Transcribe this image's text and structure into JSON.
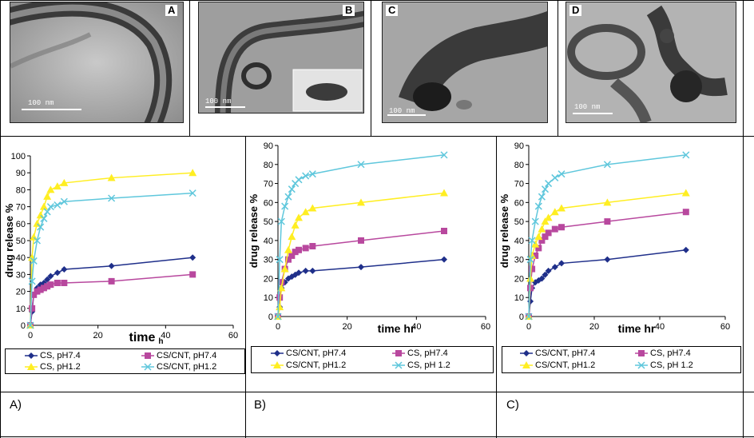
{
  "tem_images": [
    {
      "letter": "A",
      "scale": "100 nm"
    },
    {
      "letter": "B",
      "scale": "100 nm"
    },
    {
      "letter": "C",
      "scale": "100 nm"
    },
    {
      "letter": "D",
      "scale": "100 nm"
    }
  ],
  "panel_labels": [
    "A)",
    "B)",
    "C)"
  ],
  "colors": {
    "navy": "#1f2f8a",
    "magenta": "#b8489e",
    "yellow": "#ffee22",
    "cyan": "#5fc7dc"
  },
  "chart_data": [
    {
      "type": "line",
      "xlabel": "time",
      "xlabel_unit": "h",
      "ylabel": "drug release %",
      "xlim": [
        0,
        60
      ],
      "ylim": [
        0,
        100
      ],
      "xticks": [
        0,
        20,
        40,
        60
      ],
      "yticks": [
        0,
        10,
        20,
        30,
        40,
        50,
        60,
        70,
        80,
        90,
        100
      ],
      "series": [
        {
          "name": "CS, pH7.4",
          "color": "#1f2f8a",
          "marker": "diamond",
          "x": [
            0,
            0.5,
            1,
            2,
            3,
            4,
            5,
            6,
            8,
            10,
            24,
            48
          ],
          "y": [
            0,
            8,
            18,
            22,
            24,
            25,
            27,
            29,
            31,
            33,
            35,
            40
          ]
        },
        {
          "name": "CS/CNT, pH7.4",
          "color": "#b8489e",
          "marker": "square",
          "x": [
            0,
            0.5,
            1,
            2,
            3,
            4,
            5,
            6,
            8,
            10,
            24,
            48
          ],
          "y": [
            0,
            10,
            18,
            20,
            21,
            22,
            23,
            24,
            25,
            25,
            26,
            30
          ]
        },
        {
          "name": "CS, pH1.2",
          "color": "#ffee22",
          "marker": "triangle",
          "x": [
            0,
            0.5,
            1,
            2,
            3,
            4,
            5,
            6,
            8,
            10,
            24,
            48
          ],
          "y": [
            0,
            40,
            52,
            60,
            65,
            70,
            76,
            80,
            82,
            84,
            87,
            90
          ]
        },
        {
          "name": "CS/CNT, pH1.2",
          "color": "#5fc7dc",
          "marker": "x",
          "x": [
            0,
            0.5,
            1,
            2,
            3,
            4,
            5,
            6,
            8,
            10,
            24,
            48
          ],
          "y": [
            0,
            26,
            38,
            50,
            58,
            63,
            67,
            70,
            71,
            73,
            75,
            78
          ]
        }
      ]
    },
    {
      "type": "line",
      "xlabel": "time hr",
      "ylabel": "drug release %",
      "xlim": [
        0,
        60
      ],
      "ylim": [
        0,
        90
      ],
      "xticks": [
        0,
        20,
        40,
        60
      ],
      "yticks": [
        0,
        10,
        20,
        30,
        40,
        50,
        60,
        70,
        80,
        90
      ],
      "series": [
        {
          "name": "CS/CNT, pH7.4",
          "color": "#1f2f8a",
          "marker": "diamond",
          "x": [
            0,
            0.5,
            1,
            2,
            3,
            4,
            5,
            6,
            8,
            10,
            24,
            48
          ],
          "y": [
            0,
            5,
            15,
            18,
            20,
            21,
            22,
            23,
            24,
            24,
            26,
            30
          ]
        },
        {
          "name": "CS, pH7.4",
          "color": "#b8489e",
          "marker": "square",
          "x": [
            0,
            0.5,
            1,
            2,
            3,
            4,
            5,
            6,
            8,
            10,
            24,
            48
          ],
          "y": [
            0,
            10,
            18,
            25,
            30,
            32,
            34,
            35,
            36,
            37,
            40,
            45
          ]
        },
        {
          "name": "CS/CNT, pH1.2",
          "color": "#ffee22",
          "marker": "triangle",
          "x": [
            0,
            0.5,
            1,
            2,
            3,
            4,
            5,
            6,
            8,
            10,
            24,
            48
          ],
          "y": [
            0,
            5,
            15,
            25,
            35,
            42,
            48,
            52,
            55,
            57,
            60,
            65
          ]
        },
        {
          "name": "CS, pH 1.2",
          "color": "#5fc7dc",
          "marker": "x",
          "x": [
            0,
            0.5,
            1,
            2,
            3,
            4,
            5,
            6,
            8,
            10,
            24,
            48
          ],
          "y": [
            0,
            30,
            50,
            58,
            63,
            67,
            70,
            72,
            74,
            75,
            80,
            85
          ]
        }
      ]
    },
    {
      "type": "line",
      "xlabel": "time hr",
      "ylabel": "drug release %",
      "xlim": [
        0,
        60
      ],
      "ylim": [
        0,
        90
      ],
      "xticks": [
        0,
        20,
        40,
        60
      ],
      "yticks": [
        0,
        10,
        20,
        30,
        40,
        50,
        60,
        70,
        80,
        90
      ],
      "series": [
        {
          "name": "CS/CNT, pH7.4",
          "color": "#1f2f8a",
          "marker": "diamond",
          "x": [
            0,
            0.5,
            1,
            2,
            3,
            4,
            5,
            6,
            8,
            10,
            24,
            48
          ],
          "y": [
            0,
            8,
            15,
            18,
            19,
            20,
            22,
            24,
            26,
            28,
            30,
            35
          ]
        },
        {
          "name": "CS, pH7.4",
          "color": "#b8489e",
          "marker": "square",
          "x": [
            0,
            0.5,
            1,
            2,
            3,
            4,
            5,
            6,
            8,
            10,
            24,
            48
          ],
          "y": [
            0,
            15,
            25,
            32,
            36,
            40,
            42,
            44,
            46,
            47,
            50,
            55
          ]
        },
        {
          "name": "CS/CNT, pH1.2",
          "color": "#ffee22",
          "marker": "triangle",
          "x": [
            0,
            0.5,
            1,
            2,
            3,
            4,
            5,
            6,
            8,
            10,
            24,
            48
          ],
          "y": [
            0,
            20,
            32,
            38,
            42,
            46,
            50,
            52,
            55,
            57,
            60,
            65
          ]
        },
        {
          "name": "CS, pH 1.2",
          "color": "#5fc7dc",
          "marker": "x",
          "x": [
            0,
            0.5,
            1,
            2,
            3,
            4,
            5,
            6,
            8,
            10,
            24,
            48
          ],
          "y": [
            0,
            30,
            40,
            50,
            58,
            63,
            67,
            70,
            73,
            75,
            80,
            85
          ]
        }
      ]
    }
  ]
}
